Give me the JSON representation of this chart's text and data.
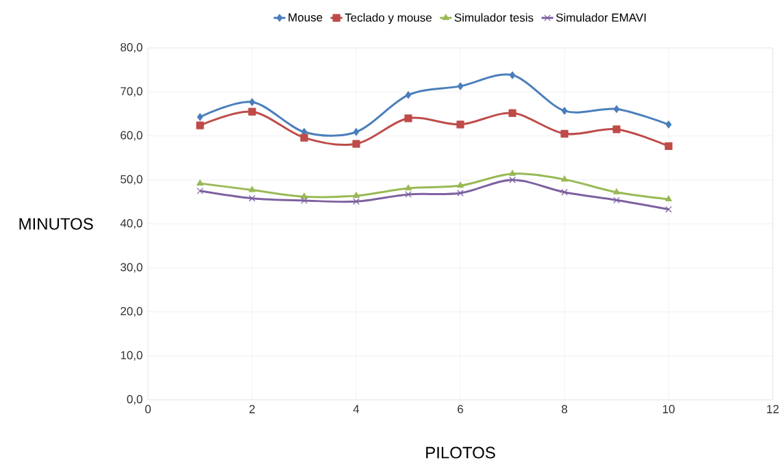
{
  "chart_data": {
    "type": "line",
    "xlabel": "PILOTOS",
    "ylabel": "MINUTOS",
    "x": [
      1,
      2,
      3,
      4,
      5,
      6,
      7,
      8,
      9,
      10
    ],
    "xlim": [
      0,
      12
    ],
    "xticks": [
      0,
      2,
      4,
      6,
      8,
      10,
      12
    ],
    "ylim": [
      0,
      80
    ],
    "yticks": [
      {
        "value": 0,
        "label": "0,0"
      },
      {
        "value": 10,
        "label": "10,0"
      },
      {
        "value": 20,
        "label": "20,0"
      },
      {
        "value": 30,
        "label": "30,0"
      },
      {
        "value": 40,
        "label": "40,0"
      },
      {
        "value": 50,
        "label": "50,0"
      },
      {
        "value": 60,
        "label": "60,0"
      },
      {
        "value": 70,
        "label": "70,0"
      },
      {
        "value": 80,
        "label": "80,0"
      }
    ],
    "grid": true,
    "legend": "top",
    "series": [
      {
        "name": "Mouse",
        "color": "#4a7ebb",
        "marker": "diamond",
        "values": [
          64.3,
          67.7,
          60.9,
          60.9,
          69.3,
          71.3,
          73.8,
          65.7,
          66.1,
          62.6
        ]
      },
      {
        "name": "Teclado y mouse",
        "color": "#be4b48",
        "marker": "square",
        "values": [
          62.4,
          65.5,
          59.6,
          58.2,
          64.0,
          62.6,
          65.2,
          60.5,
          61.5,
          57.7
        ]
      },
      {
        "name": "Simulador tesis",
        "color": "#98b954",
        "marker": "triangle",
        "values": [
          49.2,
          47.7,
          46.2,
          46.4,
          48.1,
          48.7,
          51.4,
          50.1,
          47.2,
          45.6
        ]
      },
      {
        "name": "Simulador EMAVI",
        "color": "#7d60a0",
        "marker": "cross",
        "values": [
          47.5,
          45.8,
          45.3,
          45.1,
          46.7,
          47.0,
          50.0,
          47.2,
          45.4,
          43.3
        ]
      }
    ]
  }
}
